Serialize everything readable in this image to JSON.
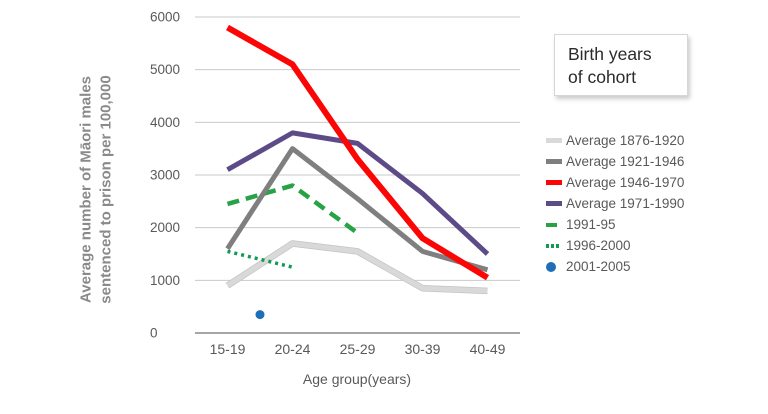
{
  "chart_data": {
    "type": "line",
    "title": "",
    "xlabel": "Age group(years)",
    "ylabel": "Average number of Māori males sentenced to prison per 100,000",
    "ylabel_lines": [
      "Average number of Māori males",
      "sentenced to prison per 100,000"
    ],
    "categories": [
      "15-19",
      "20-24",
      "25-29",
      "30-39",
      "40-49"
    ],
    "ylim": [
      0,
      6000
    ],
    "ytick_step": 1000,
    "ytick_labels": [
      "0",
      "1000",
      "2000",
      "3000",
      "4000",
      "5000",
      "6000"
    ],
    "grid": "horizontal",
    "legend_position": "right",
    "legend_title": "Birth years of cohort",
    "legend_title_lines": [
      "Birth years",
      "of cohort"
    ],
    "series": [
      {
        "name": "Average 1876-1920",
        "style": "solid",
        "color": "#D9D9D9",
        "values": [
          900,
          1700,
          1550,
          850,
          800
        ]
      },
      {
        "name": "Average 1921-1946",
        "style": "solid",
        "color": "#7F7F7F",
        "values": [
          1600,
          3500,
          2550,
          1550,
          1200
        ]
      },
      {
        "name": "Average 1946-1970",
        "style": "solid",
        "color": "#FB0505",
        "values": [
          5800,
          5100,
          3300,
          1800,
          1050
        ]
      },
      {
        "name": "Average 1971-1990",
        "style": "solid",
        "color": "#5C4B87",
        "values": [
          3100,
          3800,
          3600,
          2650,
          1500
        ]
      },
      {
        "name": "1991-95",
        "style": "dashed",
        "color": "#27A346",
        "values": [
          2450,
          2800,
          1900,
          null,
          null
        ]
      },
      {
        "name": "1996-2000",
        "style": "dotted",
        "color": "#0F9B53",
        "values": [
          1550,
          1250,
          null,
          null,
          null
        ]
      },
      {
        "name": "2001-2005",
        "style": "point",
        "color": "#1F6EB8",
        "x_pos": 0.5,
        "values": [
          350,
          null,
          null,
          null,
          null
        ]
      }
    ],
    "colors": {
      "gridline": "#C9C9C9",
      "axis_line": "#A6A6A6",
      "tick_text": "#595959",
      "y_title_text": "#8A8A8A"
    }
  }
}
